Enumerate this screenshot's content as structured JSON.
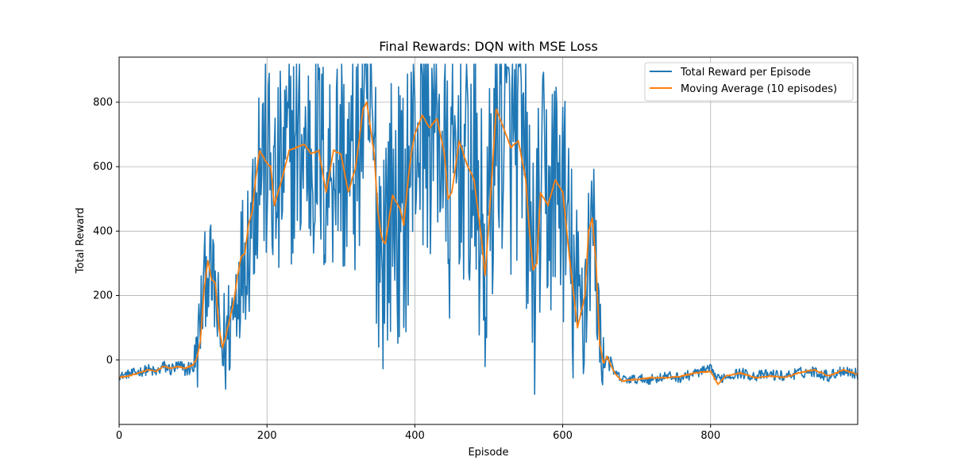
{
  "chart_data": {
    "type": "line",
    "title": "Final Rewards: DQN with MSE Loss",
    "xlabel": "Episode",
    "ylabel": "Total Reward",
    "xlim": [
      0,
      999
    ],
    "ylim": [
      -200,
      940
    ],
    "xticks": [
      0,
      200,
      400,
      600,
      800
    ],
    "yticks": [
      0,
      200,
      400,
      600,
      800
    ],
    "grid": true,
    "legend_position": "top-right",
    "series": [
      {
        "name": "Total Reward per Episode",
        "color": "#1f77b4",
        "keypoints": [
          [
            0,
            -50
          ],
          [
            20,
            -40
          ],
          [
            40,
            -30
          ],
          [
            50,
            -40
          ],
          [
            60,
            -20
          ],
          [
            70,
            -30
          ],
          [
            80,
            -20
          ],
          [
            90,
            -30
          ],
          [
            100,
            -20
          ],
          [
            105,
            10
          ],
          [
            110,
            120
          ],
          [
            115,
            230
          ],
          [
            120,
            300
          ],
          [
            125,
            250
          ],
          [
            130,
            200
          ],
          [
            135,
            80
          ],
          [
            140,
            30
          ],
          [
            145,
            60
          ],
          [
            150,
            120
          ],
          [
            155,
            150
          ],
          [
            160,
            250
          ],
          [
            165,
            300
          ],
          [
            170,
            340
          ],
          [
            175,
            400
          ],
          [
            180,
            460
          ],
          [
            185,
            580
          ],
          [
            190,
            640
          ],
          [
            195,
            630
          ],
          [
            200,
            610
          ],
          [
            205,
            580
          ],
          [
            210,
            500
          ],
          [
            215,
            520
          ],
          [
            220,
            580
          ],
          [
            230,
            640
          ],
          [
            240,
            660
          ],
          [
            250,
            650
          ],
          [
            260,
            640
          ],
          [
            270,
            650
          ],
          [
            280,
            560
          ],
          [
            290,
            640
          ],
          [
            300,
            640
          ],
          [
            310,
            560
          ],
          [
            320,
            620
          ],
          [
            330,
            780
          ],
          [
            335,
            780
          ],
          [
            340,
            700
          ],
          [
            345,
            620
          ],
          [
            350,
            440
          ],
          [
            355,
            380
          ],
          [
            360,
            400
          ],
          [
            370,
            500
          ],
          [
            380,
            440
          ],
          [
            385,
            420
          ],
          [
            390,
            560
          ],
          [
            395,
            620
          ],
          [
            400,
            700
          ],
          [
            410,
            760
          ],
          [
            420,
            720
          ],
          [
            430,
            760
          ],
          [
            440,
            620
          ],
          [
            445,
            480
          ],
          [
            450,
            520
          ],
          [
            460,
            680
          ],
          [
            470,
            600
          ],
          [
            480,
            560
          ],
          [
            490,
            380
          ],
          [
            495,
            280
          ],
          [
            500,
            420
          ],
          [
            510,
            760
          ],
          [
            520,
            720
          ],
          [
            530,
            660
          ],
          [
            540,
            700
          ],
          [
            550,
            560
          ],
          [
            555,
            380
          ],
          [
            560,
            280
          ],
          [
            565,
            300
          ],
          [
            570,
            520
          ],
          [
            580,
            480
          ],
          [
            590,
            560
          ],
          [
            595,
            540
          ],
          [
            600,
            520
          ],
          [
            610,
            300
          ],
          [
            620,
            140
          ],
          [
            630,
            200
          ],
          [
            635,
            380
          ],
          [
            640,
            440
          ],
          [
            645,
            300
          ],
          [
            650,
            60
          ],
          [
            655,
            0
          ],
          [
            660,
            10
          ],
          [
            670,
            -40
          ],
          [
            680,
            -60
          ],
          [
            700,
            -60
          ],
          [
            720,
            -60
          ],
          [
            740,
            -50
          ],
          [
            760,
            -55
          ],
          [
            780,
            -40
          ],
          [
            800,
            -30
          ],
          [
            810,
            -60
          ],
          [
            820,
            -50
          ],
          [
            840,
            -40
          ],
          [
            860,
            -50
          ],
          [
            880,
            -45
          ],
          [
            900,
            -50
          ],
          [
            920,
            -40
          ],
          [
            940,
            -35
          ],
          [
            960,
            -50
          ],
          [
            980,
            -30
          ],
          [
            999,
            -45
          ]
        ],
        "volatility": [
          [
            0,
            12
          ],
          [
            100,
            25
          ],
          [
            105,
            140
          ],
          [
            170,
            220
          ],
          [
            185,
            340
          ],
          [
            330,
            380
          ],
          [
            340,
            420
          ],
          [
            600,
            400
          ],
          [
            640,
            280
          ],
          [
            660,
            35
          ],
          [
            670,
            15
          ],
          [
            999,
            18
          ]
        ]
      },
      {
        "name": "Moving Average (10 episodes)",
        "color": "#ff7f0e",
        "keypoints": [
          [
            0,
            -55
          ],
          [
            20,
            -45
          ],
          [
            40,
            -30
          ],
          [
            50,
            -35
          ],
          [
            60,
            -20
          ],
          [
            70,
            -25
          ],
          [
            80,
            -20
          ],
          [
            90,
            -25
          ],
          [
            100,
            -15
          ],
          [
            105,
            5
          ],
          [
            110,
            60
          ],
          [
            115,
            220
          ],
          [
            120,
            310
          ],
          [
            125,
            250
          ],
          [
            130,
            240
          ],
          [
            135,
            100
          ],
          [
            140,
            40
          ],
          [
            145,
            80
          ],
          [
            150,
            130
          ],
          [
            155,
            180
          ],
          [
            160,
            260
          ],
          [
            165,
            320
          ],
          [
            170,
            330
          ],
          [
            175,
            420
          ],
          [
            180,
            460
          ],
          [
            185,
            570
          ],
          [
            190,
            650
          ],
          [
            195,
            630
          ],
          [
            200,
            610
          ],
          [
            205,
            600
          ],
          [
            210,
            480
          ],
          [
            215,
            520
          ],
          [
            220,
            560
          ],
          [
            230,
            650
          ],
          [
            240,
            660
          ],
          [
            250,
            670
          ],
          [
            260,
            640
          ],
          [
            270,
            650
          ],
          [
            280,
            520
          ],
          [
            290,
            650
          ],
          [
            300,
            640
          ],
          [
            310,
            520
          ],
          [
            320,
            600
          ],
          [
            330,
            780
          ],
          [
            335,
            800
          ],
          [
            340,
            720
          ],
          [
            345,
            640
          ],
          [
            350,
            460
          ],
          [
            355,
            380
          ],
          [
            360,
            360
          ],
          [
            370,
            510
          ],
          [
            380,
            470
          ],
          [
            385,
            420
          ],
          [
            390,
            540
          ],
          [
            395,
            640
          ],
          [
            400,
            700
          ],
          [
            410,
            760
          ],
          [
            420,
            720
          ],
          [
            430,
            750
          ],
          [
            440,
            640
          ],
          [
            445,
            500
          ],
          [
            450,
            520
          ],
          [
            460,
            680
          ],
          [
            470,
            610
          ],
          [
            480,
            560
          ],
          [
            490,
            380
          ],
          [
            495,
            260
          ],
          [
            500,
            420
          ],
          [
            510,
            780
          ],
          [
            520,
            720
          ],
          [
            530,
            660
          ],
          [
            540,
            680
          ],
          [
            550,
            560
          ],
          [
            555,
            400
          ],
          [
            560,
            280
          ],
          [
            565,
            300
          ],
          [
            570,
            520
          ],
          [
            580,
            480
          ],
          [
            590,
            560
          ],
          [
            595,
            540
          ],
          [
            600,
            520
          ],
          [
            610,
            300
          ],
          [
            620,
            100
          ],
          [
            630,
            200
          ],
          [
            635,
            400
          ],
          [
            640,
            440
          ],
          [
            645,
            300
          ],
          [
            650,
            50
          ],
          [
            655,
            -10
          ],
          [
            660,
            10
          ],
          [
            670,
            -40
          ],
          [
            680,
            -65
          ],
          [
            700,
            -60
          ],
          [
            720,
            -55
          ],
          [
            740,
            -55
          ],
          [
            760,
            -50
          ],
          [
            780,
            -40
          ],
          [
            800,
            -35
          ],
          [
            810,
            -75
          ],
          [
            820,
            -50
          ],
          [
            840,
            -40
          ],
          [
            860,
            -55
          ],
          [
            880,
            -50
          ],
          [
            900,
            -55
          ],
          [
            920,
            -40
          ],
          [
            940,
            -30
          ],
          [
            960,
            -50
          ],
          [
            980,
            -30
          ],
          [
            999,
            -45
          ]
        ],
        "volatility": [
          [
            0,
            2
          ],
          [
            999,
            2
          ]
        ]
      }
    ]
  }
}
